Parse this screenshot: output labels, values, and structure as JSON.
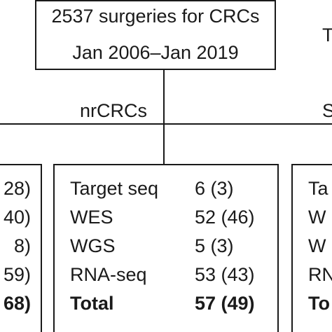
{
  "top_box": {
    "line1": "2537 surgeries for CRCs",
    "line2": "Jan 2006–Jan 2019"
  },
  "branch_label": "nrCRCs",
  "right_top_fragment": "T",
  "right_branch_fragment": "S",
  "left_box_fragments": [
    "28)",
    "40)",
    "8)",
    "59)",
    "68)"
  ],
  "middle_box": {
    "rows": [
      {
        "label": "Target seq",
        "value": "6 (3)"
      },
      {
        "label": "WES",
        "value": "52 (46)"
      },
      {
        "label": "WGS",
        "value": "5 (3)"
      },
      {
        "label": "RNA-seq",
        "value": "53 (43)"
      },
      {
        "label": "Total",
        "value": "57 (49)"
      }
    ]
  },
  "right_box_fragments": [
    "Ta",
    "W",
    "W",
    "RN",
    "To"
  ]
}
